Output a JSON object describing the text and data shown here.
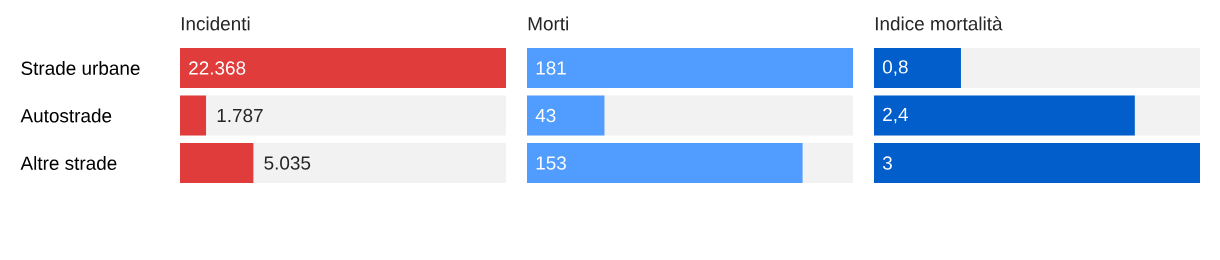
{
  "chart_data": [
    {
      "type": "bar",
      "orientation": "horizontal",
      "title": "Incidenti",
      "categories": [
        "Strade urbane",
        "Autostrade",
        "Altre strade"
      ],
      "values": [
        22368,
        1787,
        5035
      ],
      "value_labels": [
        "22.368",
        "1.787",
        "5.035"
      ],
      "color": "#e03c3c",
      "tick_labels": "y"
    },
    {
      "type": "bar",
      "orientation": "horizontal",
      "title": "Morti",
      "categories": [
        null,
        null,
        null
      ],
      "values": [
        181,
        43,
        153
      ],
      "value_labels": [
        "181",
        "43",
        "153"
      ],
      "color": "#509dff",
      "tick_labels": false
    },
    {
      "type": "bar",
      "orientation": "horizontal",
      "title": "Indice mortalità",
      "categories": [
        null,
        null,
        null
      ],
      "values": [
        0.8,
        2.4,
        3
      ],
      "value_labels": [
        "0,8",
        "2,4",
        "3"
      ],
      "color": "#015ecb",
      "tick_labels": false
    }
  ]
}
